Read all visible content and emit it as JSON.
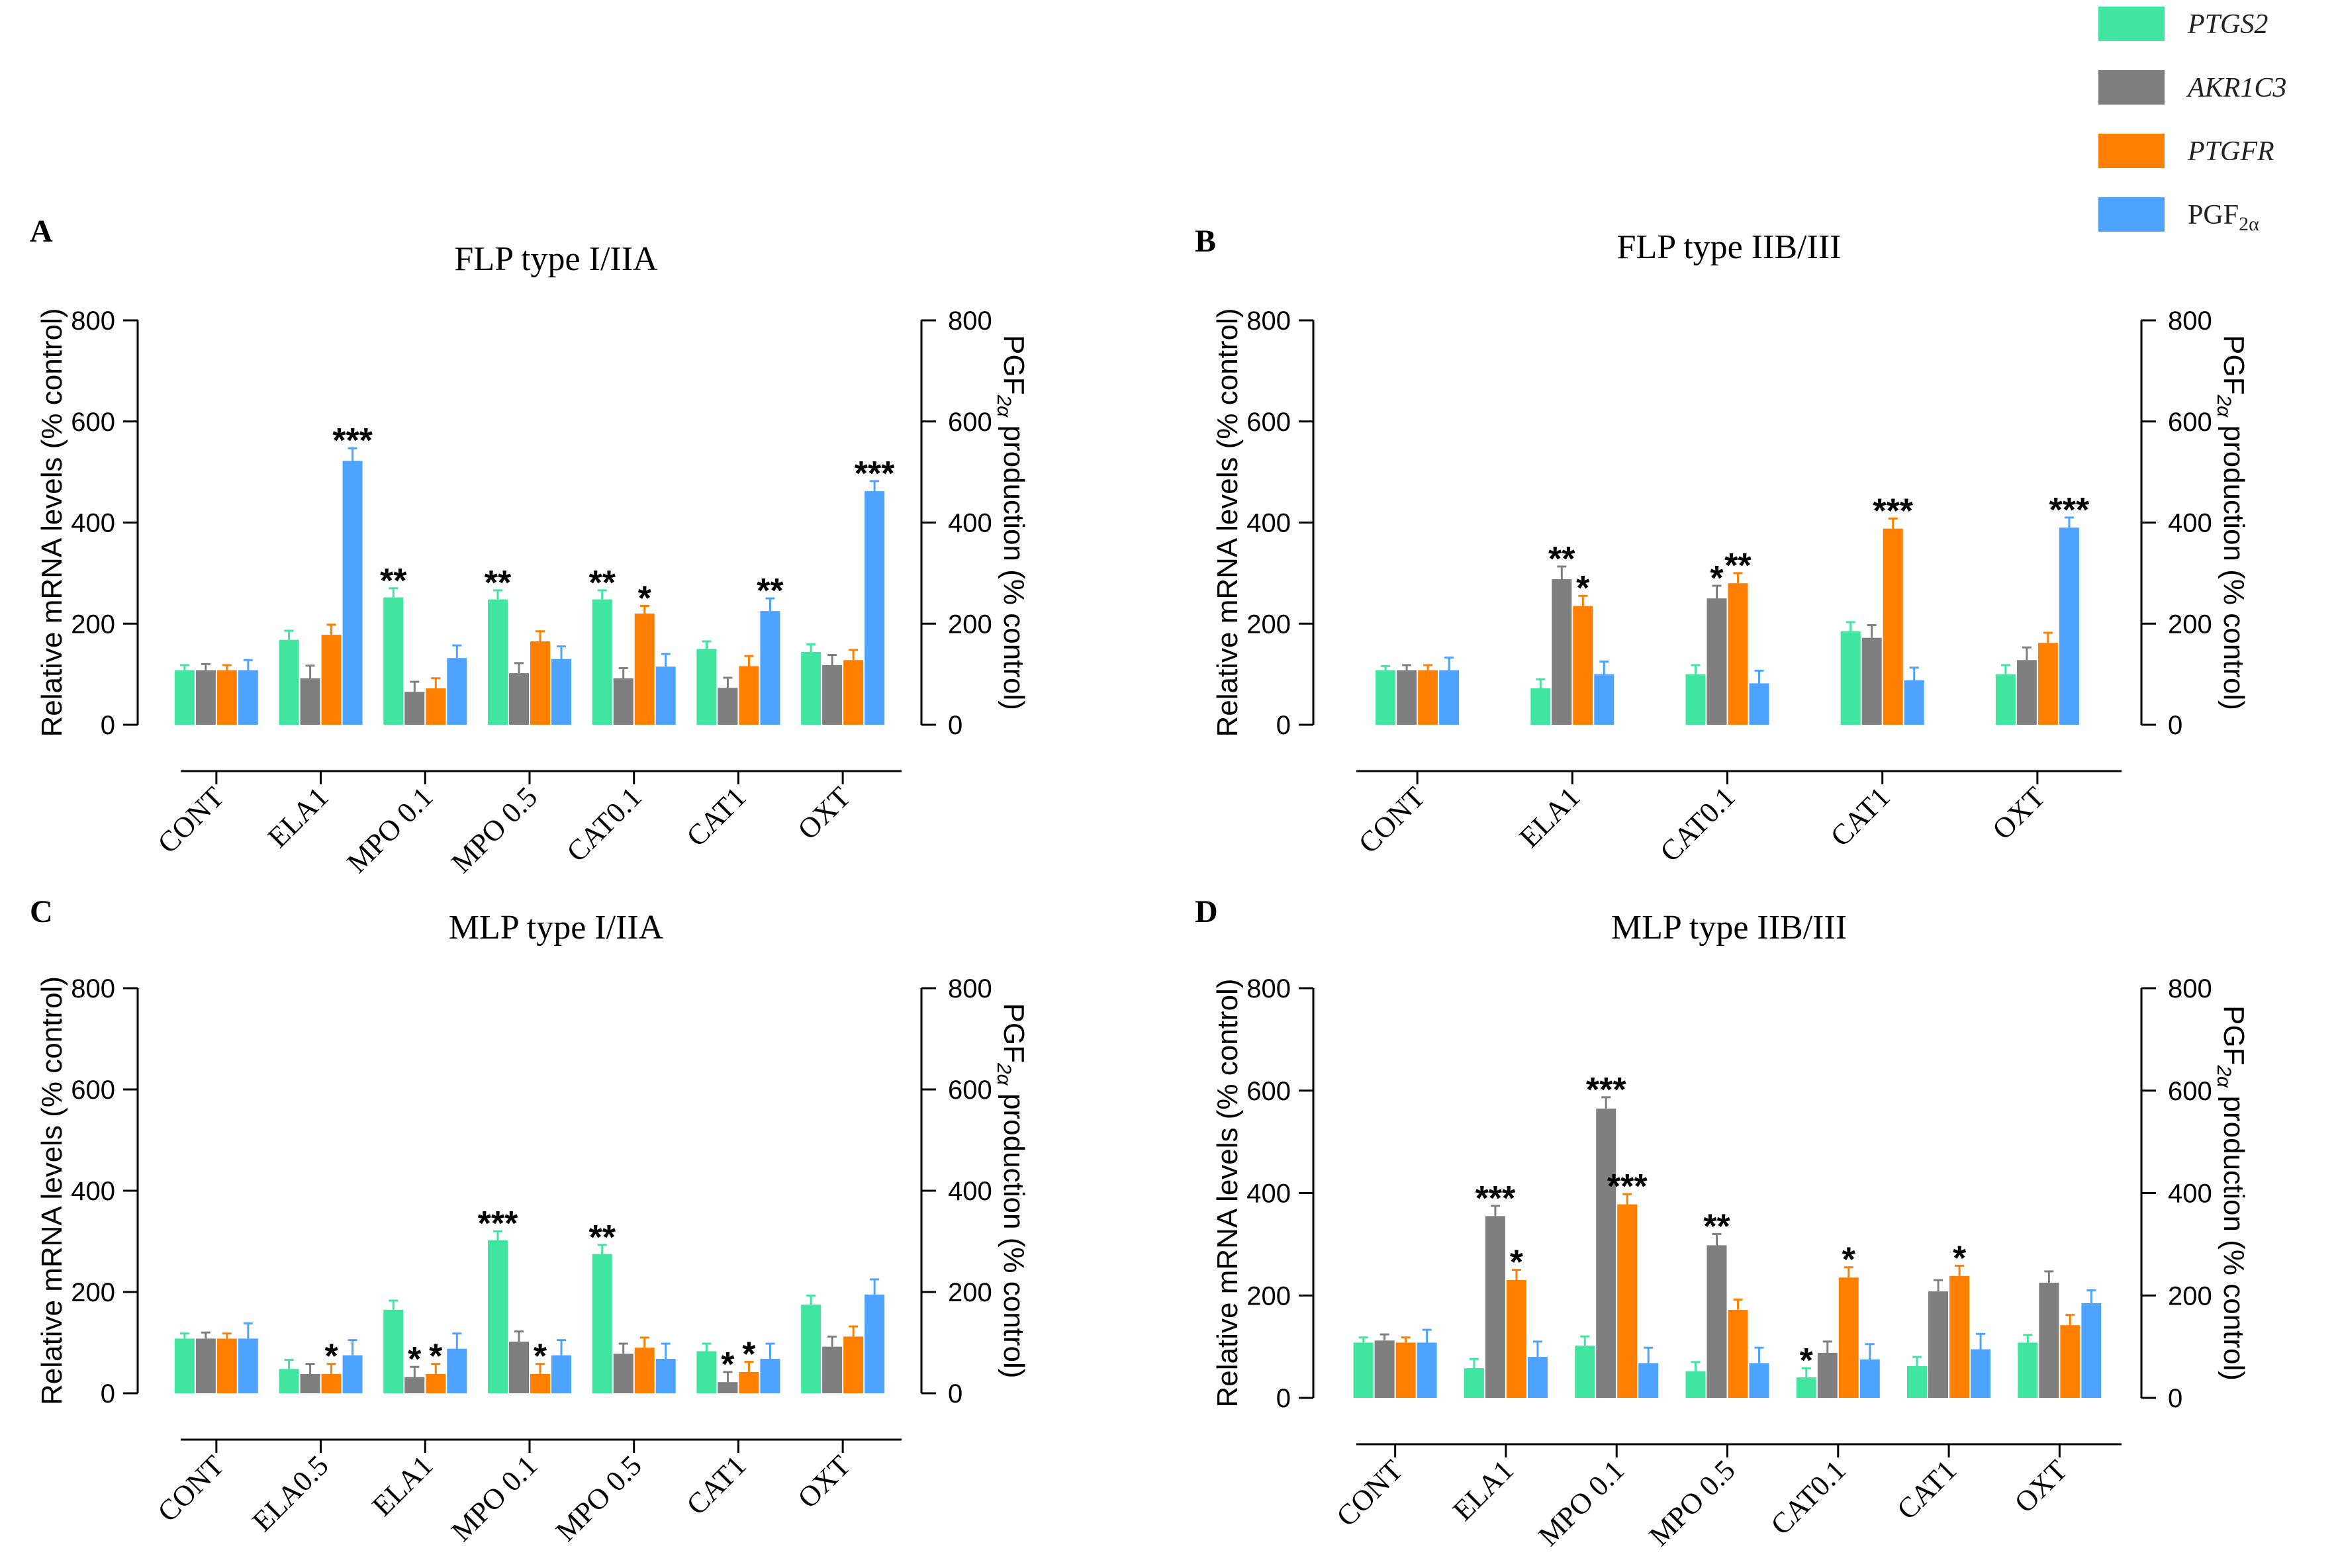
{
  "colors": {
    "PTGS2": "#40e6a0",
    "AKR1C3": "#7f7f7f",
    "PTGFR": "#ff8000",
    "PGF2a": "#4da3ff",
    "axis": "#000000"
  },
  "legend": {
    "items": [
      {
        "key": "PTGS2",
        "label": "PTGS2",
        "italic": true
      },
      {
        "key": "AKR1C3",
        "label": "AKR1C3",
        "italic": true
      },
      {
        "key": "PTGFR",
        "label": "PTGFR",
        "italic": true
      },
      {
        "key": "PGF2a",
        "label": "PGF",
        "sub": "2α",
        "italic": false
      }
    ]
  },
  "axes": {
    "left_label": "Relative mRNA levels (% control)",
    "right_label_prefix": "PGF",
    "right_label_sub": "2α",
    "right_label_suffix": " production (% control)"
  },
  "chart_data": [
    {
      "letter": "A",
      "title": "FLP type I/IIA",
      "type": "bar",
      "ylim": [
        0,
        800
      ],
      "yticks": [
        0,
        200,
        400,
        600,
        800
      ],
      "categories": [
        "CONT",
        "ELA1",
        "MPO 0.1",
        "MPO 0.5",
        "CAT0.1",
        "CAT1",
        "OXT"
      ],
      "series": [
        {
          "name": "PTGS2",
          "values": [
            108,
            168,
            252,
            248,
            248,
            150,
            144
          ],
          "errors": [
            10,
            18,
            18,
            18,
            18,
            15,
            15
          ],
          "sig": [
            "",
            "",
            "**",
            "**",
            "**",
            "",
            ""
          ]
        },
        {
          "name": "AKR1C3",
          "values": [
            108,
            92,
            65,
            102,
            92,
            73,
            118
          ],
          "errors": [
            12,
            25,
            20,
            20,
            20,
            20,
            20
          ],
          "sig": [
            "",
            "",
            "",
            "",
            "",
            "",
            ""
          ]
        },
        {
          "name": "PTGFR",
          "values": [
            108,
            178,
            72,
            165,
            220,
            116,
            128
          ],
          "errors": [
            10,
            20,
            20,
            20,
            15,
            20,
            20
          ],
          "sig": [
            "",
            "",
            "",
            "",
            "*",
            "",
            ""
          ]
        },
        {
          "name": "PGF2a",
          "values": [
            108,
            522,
            132,
            130,
            115,
            225,
            462
          ],
          "errors": [
            20,
            25,
            25,
            25,
            25,
            25,
            20
          ],
          "sig": [
            "",
            "***",
            "",
            "",
            "",
            "**",
            "***"
          ]
        }
      ]
    },
    {
      "letter": "B",
      "title": "FLP type IIB/III",
      "type": "bar",
      "ylim": [
        0,
        800
      ],
      "yticks": [
        0,
        200,
        400,
        600,
        800
      ],
      "categories": [
        "CONT",
        "ELA1",
        "CAT0.1",
        "CAT1",
        "OXT"
      ],
      "series": [
        {
          "name": "PTGS2",
          "values": [
            108,
            72,
            100,
            185,
            100
          ],
          "errors": [
            8,
            18,
            18,
            18,
            18
          ],
          "sig": [
            "",
            "",
            "",
            "",
            ""
          ]
        },
        {
          "name": "AKR1C3",
          "values": [
            108,
            288,
            250,
            172,
            128
          ],
          "errors": [
            10,
            25,
            25,
            25,
            25
          ],
          "sig": [
            "",
            "**",
            "*",
            "",
            ""
          ]
        },
        {
          "name": "PTGFR",
          "values": [
            108,
            235,
            280,
            388,
            162
          ],
          "errors": [
            10,
            20,
            20,
            20,
            20
          ],
          "sig": [
            "",
            "*",
            "**",
            "***",
            ""
          ]
        },
        {
          "name": "PGF2a",
          "values": [
            108,
            100,
            82,
            88,
            390
          ],
          "errors": [
            25,
            25,
            25,
            25,
            20
          ],
          "sig": [
            "",
            "",
            "",
            "",
            "***"
          ]
        }
      ]
    },
    {
      "letter": "C",
      "title": "MLP type I/IIA",
      "type": "bar",
      "ylim": [
        0,
        800
      ],
      "yticks": [
        0,
        200,
        400,
        600,
        800
      ],
      "categories": [
        "CONT",
        "ELA0.5",
        "ELA1",
        "MPO 0.1",
        "MPO 0.5",
        "CAT1",
        "OXT"
      ],
      "series": [
        {
          "name": "PTGS2",
          "values": [
            108,
            48,
            165,
            302,
            275,
            83,
            175
          ],
          "errors": [
            10,
            18,
            18,
            18,
            18,
            15,
            18
          ],
          "sig": [
            "",
            "",
            "",
            "***",
            "**",
            "",
            ""
          ]
        },
        {
          "name": "AKR1C3",
          "values": [
            108,
            38,
            32,
            102,
            78,
            22,
            92
          ],
          "errors": [
            12,
            20,
            20,
            20,
            20,
            20,
            20
          ],
          "sig": [
            "",
            "",
            "*",
            "",
            "",
            "*",
            ""
          ]
        },
        {
          "name": "PTGFR",
          "values": [
            108,
            38,
            38,
            38,
            90,
            42,
            112
          ],
          "errors": [
            10,
            20,
            20,
            20,
            20,
            20,
            20
          ],
          "sig": [
            "",
            "*",
            "*",
            "*",
            "",
            "*",
            ""
          ]
        },
        {
          "name": "PGF2a",
          "values": [
            108,
            75,
            88,
            75,
            68,
            68,
            195
          ],
          "errors": [
            30,
            30,
            30,
            30,
            30,
            30,
            30
          ],
          "sig": [
            "",
            "",
            "",
            "",
            "",
            "",
            ""
          ]
        }
      ]
    },
    {
      "letter": "D",
      "title": "MLP type IIB/III",
      "type": "bar",
      "ylim": [
        0,
        800
      ],
      "yticks": [
        0,
        200,
        400,
        600,
        800
      ],
      "categories": [
        "CONT",
        "ELA1",
        "MPO 0.1",
        "MPO 0.5",
        "CAT0.1",
        "CAT1",
        "OXT"
      ],
      "series": [
        {
          "name": "PTGS2",
          "values": [
            108,
            58,
            102,
            52,
            40,
            62,
            108
          ],
          "errors": [
            10,
            18,
            18,
            18,
            18,
            18,
            15
          ],
          "sig": [
            "",
            "",
            "",
            "",
            "*",
            "",
            ""
          ]
        },
        {
          "name": "AKR1C3",
          "values": [
            112,
            355,
            565,
            298,
            88,
            208,
            225
          ],
          "errors": [
            12,
            20,
            22,
            22,
            22,
            22,
            22
          ],
          "sig": [
            "",
            "***",
            "***",
            "**",
            "",
            "",
            ""
          ]
        },
        {
          "name": "PTGFR",
          "values": [
            108,
            230,
            378,
            172,
            235,
            238,
            142
          ],
          "errors": [
            10,
            20,
            20,
            20,
            20,
            20,
            20
          ],
          "sig": [
            "",
            "*",
            "***",
            "",
            "*",
            "*",
            ""
          ]
        },
        {
          "name": "PGF2a",
          "values": [
            108,
            80,
            68,
            68,
            75,
            95,
            185
          ],
          "errors": [
            25,
            30,
            30,
            30,
            30,
            30,
            25
          ],
          "sig": [
            "",
            "",
            "",
            "",
            "",
            "",
            ""
          ]
        }
      ]
    }
  ]
}
